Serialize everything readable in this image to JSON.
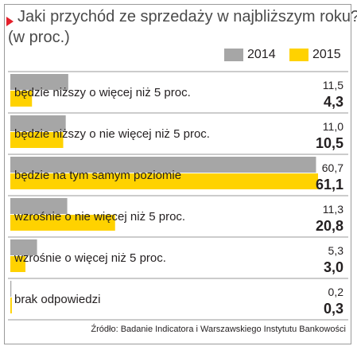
{
  "title_line1": "Jaki przychód ze sprzedaży w najbliższym roku?",
  "title_line2": "(w proc.)",
  "source": "Źródło: Badanie Indicatora i Warszawskiego Instytutu Bankowości",
  "colors": {
    "series_2014": "#a6a6a6",
    "series_2015": "#ffd200",
    "divider": "#9a9a9a",
    "title_marker": "#e4202b"
  },
  "chart_data": {
    "type": "bar",
    "orientation": "horizontal",
    "categories": [
      "będzie niższy o więcej niż 5 proc.",
      "będzie niższy o nie więcej niż 5 proc.",
      "będzie na tym samym poziomie",
      "wzrośnie o nie więcej niż 5 proc.",
      "wzrośnie o więcej niż 5 proc.",
      "brak odpowiedzi"
    ],
    "series": [
      {
        "name": "2014",
        "values": [
          "11,5",
          "11,0",
          "60,7",
          "11,3",
          "5,3",
          "0,2"
        ]
      },
      {
        "name": "2015",
        "values": [
          "4,3",
          "10,5",
          "61,1",
          "20,8",
          "3,0",
          "0,3"
        ]
      }
    ],
    "xlim": [
      0,
      61.1
    ],
    "legend": "top-right"
  }
}
